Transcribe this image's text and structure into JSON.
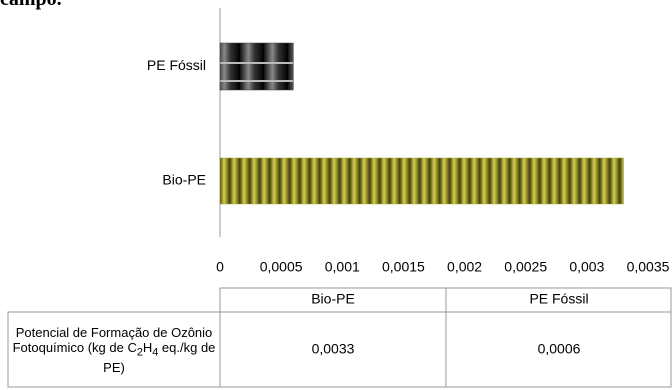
{
  "page_text": "campo.",
  "chart_data": {
    "type": "hbar",
    "categories": [
      "PE Fóssil",
      "Bio-PE"
    ],
    "values": [
      0.0006,
      0.0033
    ],
    "value_labels": [
      "0,0006",
      "0,0033"
    ],
    "colors": [
      "#3a3a3a",
      "#a3a32c"
    ],
    "xlim": [
      0,
      0.0035
    ],
    "xticks": [
      0,
      {
        "value": 0.0005,
        "label": "0,0005"
      },
      {
        "value": 0.001,
        "label": "0,001"
      },
      {
        "value": 0.0015,
        "label": "0,0015"
      },
      {
        "value": 0.002,
        "label": "0,002"
      },
      {
        "value": 0.0025,
        "label": "0,0025"
      },
      {
        "value": 0.003,
        "label": "0,003"
      },
      {
        "value": 0.0035,
        "label": "0,0035"
      }
    ],
    "grid": false,
    "table_row_label": [
      "Potencial de Formação de Ozônio Fotoquímico (kg de C",
      "2",
      "H",
      "4",
      " eq./kg de PE)"
    ]
  }
}
